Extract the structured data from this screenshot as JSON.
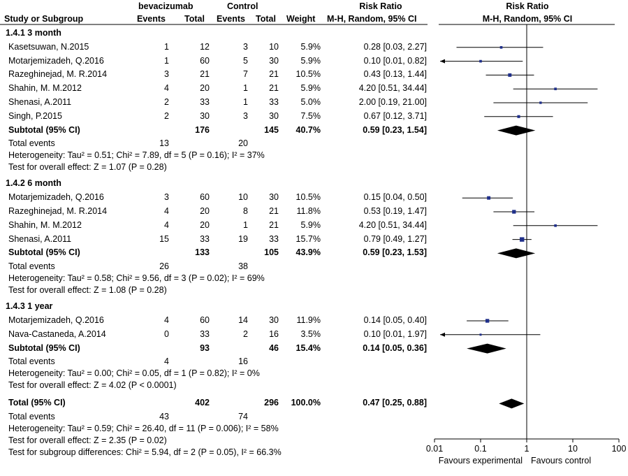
{
  "headers": {
    "group1": "bevacizumab",
    "group2": "Control",
    "study": "Study or Subgroup",
    "events1": "Events",
    "total1": "Total",
    "events2": "Events",
    "total2": "Total",
    "weight": "Weight",
    "rr_title": "Risk Ratio",
    "rr_method": "M-H, Random, 95% CI",
    "plot_title": "Risk Ratio",
    "plot_method": "M-H, Random, 95% CI"
  },
  "chart_data": {
    "type": "forest",
    "x_scale": "log",
    "xlim": [
      0.01,
      100
    ],
    "ticks": [
      "0.01",
      "0.1",
      "1",
      "10",
      "100"
    ],
    "xlabel_left": "Favours experimental",
    "xlabel_right": "Favours control",
    "subgroups": [
      {
        "title": "1.4.1 3 month",
        "studies": [
          {
            "name": "Kasetsuwan, N.2015",
            "e1": "1",
            "t1": "12",
            "e2": "3",
            "t2": "10",
            "weight": "5.9%",
            "ci_text": "0.28 [0.03, 2.27]",
            "rr": 0.28,
            "lo": 0.03,
            "hi": 2.27,
            "w": 5.9
          },
          {
            "name": "Motarjemizadeh, Q.2016",
            "e1": "1",
            "t1": "60",
            "e2": "5",
            "t2": "30",
            "weight": "5.9%",
            "ci_text": "0.10 [0.01, 0.82]",
            "rr": 0.1,
            "lo": 0.01,
            "hi": 0.82,
            "w": 5.9
          },
          {
            "name": "Razeghinejad, M. R.2014",
            "e1": "3",
            "t1": "21",
            "e2": "7",
            "t2": "21",
            "weight": "10.5%",
            "ci_text": "0.43 [0.13, 1.44]",
            "rr": 0.43,
            "lo": 0.13,
            "hi": 1.44,
            "w": 10.5
          },
          {
            "name": "Shahin, M. M.2012",
            "e1": "4",
            "t1": "20",
            "e2": "1",
            "t2": "21",
            "weight": "5.9%",
            "ci_text": "4.20 [0.51, 34.44]",
            "rr": 4.2,
            "lo": 0.51,
            "hi": 34.44,
            "w": 5.9
          },
          {
            "name": "Shenasi, A.2011",
            "e1": "2",
            "t1": "33",
            "e2": "1",
            "t2": "33",
            "weight": "5.0%",
            "ci_text": "2.00 [0.19, 21.00]",
            "rr": 2.0,
            "lo": 0.19,
            "hi": 21.0,
            "w": 5.0
          },
          {
            "name": "Singh, P.2015",
            "e1": "2",
            "t1": "30",
            "e2": "3",
            "t2": "30",
            "weight": "7.5%",
            "ci_text": "0.67 [0.12, 3.71]",
            "rr": 0.67,
            "lo": 0.12,
            "hi": 3.71,
            "w": 7.5
          }
        ],
        "subtotal": {
          "label": "Subtotal (95% CI)",
          "t1": "176",
          "t2": "145",
          "weight": "40.7%",
          "ci_text": "0.59 [0.23, 1.54]",
          "rr": 0.59,
          "lo": 0.23,
          "hi": 1.54
        },
        "total_events": {
          "label": "Total events",
          "e1": "13",
          "e2": "20"
        },
        "heterogeneity": "Heterogeneity: Tau² = 0.51; Chi² = 7.89, df = 5 (P = 0.16); I² = 37%",
        "overall": "Test for overall effect: Z = 1.07 (P = 0.28)"
      },
      {
        "title": "1.4.2 6 month",
        "studies": [
          {
            "name": "Motarjemizadeh, Q.2016",
            "e1": "3",
            "t1": "60",
            "e2": "10",
            "t2": "30",
            "weight": "10.5%",
            "ci_text": "0.15 [0.04, 0.50]",
            "rr": 0.15,
            "lo": 0.04,
            "hi": 0.5,
            "w": 10.5
          },
          {
            "name": "Razeghinejad, M. R.2014",
            "e1": "4",
            "t1": "20",
            "e2": "8",
            "t2": "21",
            "weight": "11.8%",
            "ci_text": "0.53 [0.19, 1.47]",
            "rr": 0.53,
            "lo": 0.19,
            "hi": 1.47,
            "w": 11.8
          },
          {
            "name": "Shahin, M. M.2012",
            "e1": "4",
            "t1": "20",
            "e2": "1",
            "t2": "21",
            "weight": "5.9%",
            "ci_text": "4.20 [0.51, 34.44]",
            "rr": 4.2,
            "lo": 0.51,
            "hi": 34.44,
            "w": 5.9
          },
          {
            "name": "Shenasi, A.2011",
            "e1": "15",
            "t1": "33",
            "e2": "19",
            "t2": "33",
            "weight": "15.7%",
            "ci_text": "0.79 [0.49, 1.27]",
            "rr": 0.79,
            "lo": 0.49,
            "hi": 1.27,
            "w": 15.7
          }
        ],
        "subtotal": {
          "label": "Subtotal (95% CI)",
          "t1": "133",
          "t2": "105",
          "weight": "43.9%",
          "ci_text": "0.59 [0.23, 1.53]",
          "rr": 0.59,
          "lo": 0.23,
          "hi": 1.53
        },
        "total_events": {
          "label": "Total events",
          "e1": "26",
          "e2": "38"
        },
        "heterogeneity": "Heterogeneity: Tau² = 0.58; Chi² = 9.56, df = 3 (P = 0.02); I² = 69%",
        "overall": "Test for overall effect: Z = 1.08 (P = 0.28)"
      },
      {
        "title": "1.4.3 1 year",
        "studies": [
          {
            "name": "Motarjemizadeh, Q.2016",
            "e1": "4",
            "t1": "60",
            "e2": "14",
            "t2": "30",
            "weight": "11.9%",
            "ci_text": "0.14 [0.05, 0.40]",
            "rr": 0.14,
            "lo": 0.05,
            "hi": 0.4,
            "w": 11.9
          },
          {
            "name": "Nava-Castaneda, A.2014",
            "e1": "0",
            "t1": "33",
            "e2": "2",
            "t2": "16",
            "weight": "3.5%",
            "ci_text": "0.10 [0.01, 1.97]",
            "rr": 0.1,
            "lo": 0.01,
            "hi": 1.97,
            "w": 3.5
          }
        ],
        "subtotal": {
          "label": "Subtotal (95% CI)",
          "t1": "93",
          "t2": "46",
          "weight": "15.4%",
          "ci_text": "0.14 [0.05, 0.36]",
          "rr": 0.14,
          "lo": 0.05,
          "hi": 0.36
        },
        "total_events": {
          "label": "Total events",
          "e1": "4",
          "e2": "16"
        },
        "heterogeneity": "Heterogeneity: Tau² = 0.00; Chi² = 0.05, df = 1 (P = 0.82); I² = 0%",
        "overall": "Test for overall effect: Z = 4.02 (P < 0.0001)"
      }
    ],
    "total": {
      "label": "Total (95% CI)",
      "t1": "402",
      "t2": "296",
      "weight": "100.0%",
      "ci_text": "0.47 [0.25, 0.88]",
      "rr": 0.47,
      "lo": 0.25,
      "hi": 0.88
    },
    "total_events": {
      "label": "Total events",
      "e1": "43",
      "e2": "74"
    },
    "heterogeneity": "Heterogeneity: Tau² = 0.59; Chi² = 26.40, df = 11 (P = 0.006); I² = 58%",
    "overall": "Test for overall effect: Z = 2.35 (P = 0.02)",
    "subgroup_diff": "Test for subgroup differences: Chi² = 5.94, df = 2 (P = 0.05), I² = 66.3%"
  },
  "colors": {
    "marker": "#1f2f8a",
    "line": "#000000",
    "text": "#000000"
  }
}
